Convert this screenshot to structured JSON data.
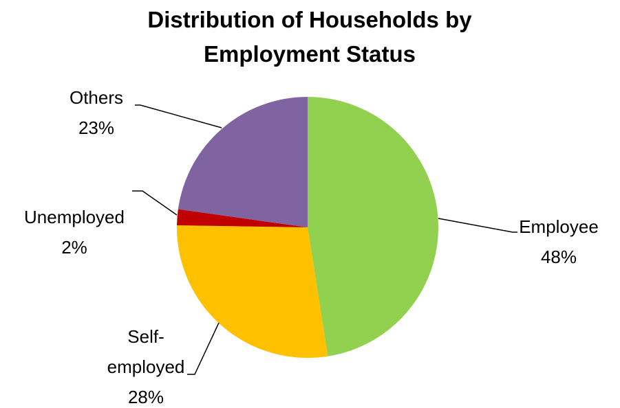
{
  "chart_data": {
    "type": "pie",
    "title": "Distribution of Households by Employment Status",
    "categories": [
      "Employee",
      "Self-employed",
      "Unemployed",
      "Others"
    ],
    "values": [
      48,
      28,
      2,
      23
    ],
    "value_labels": [
      "48%",
      "28%",
      "2%",
      "23%"
    ],
    "colors": [
      "#92d050",
      "#ffc000",
      "#c00000",
      "#8064a2"
    ]
  }
}
